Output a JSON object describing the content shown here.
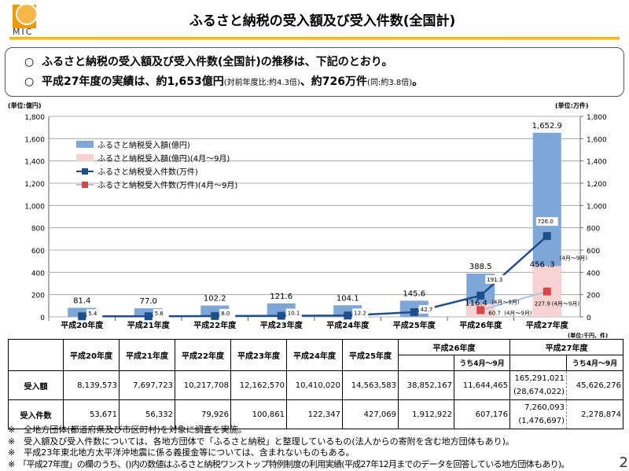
{
  "header": {
    "logo_text": "MIC",
    "title": "ふるさと納税の受入額及び受入件数(全国計)"
  },
  "summary": {
    "bullet": "○",
    "line1": "ふるさと納税の受入額及び受入件数(全国計)の推移は、下記のとおり。",
    "line2_a": "平成27年度の実績は、約1,653億円",
    "line2_b": "(対前年度比:約4.3倍)",
    "line2_c": "、約726万件",
    "line2_d": "(同:約3.8倍)",
    "line2_e": "。"
  },
  "chart_data": {
    "type": "bar+line",
    "left_unit": "(単位:億円)",
    "right_unit": "(単位:万件)",
    "table_unit": "(単位:千円、件)",
    "categories": [
      "平成20年度",
      "平成21年度",
      "平成22年度",
      "平成23年度",
      "平成24年度",
      "平成25年度",
      "平成26年度",
      "平成27年度"
    ],
    "ylim": [
      0,
      1800
    ],
    "yticks": [
      "0",
      "200",
      "400",
      "600",
      "800",
      "1,000",
      "1,200",
      "1,400",
      "1,600",
      "1,800"
    ],
    "y2ticks": [
      "0",
      "200",
      "400",
      "600",
      "800",
      "1,000",
      "1,200",
      "1,400",
      "1,600",
      "1,800"
    ],
    "series": [
      {
        "name": "ふるさと納税受入額(億円)",
        "kind": "bar",
        "color": "#7ea6d6",
        "values": [
          81.4,
          77.0,
          102.2,
          121.6,
          104.1,
          145.6,
          388.5,
          1652.9
        ],
        "labels": [
          "81.4",
          "77.0",
          "102.2",
          "121.6",
          "104.1",
          "145.6",
          "388.5",
          "1,652.9"
        ]
      },
      {
        "name": "ふるさと納税受入額(億円)(4月～9月)",
        "kind": "bar",
        "color": "#f6d2d2",
        "values": [
          null,
          null,
          null,
          null,
          null,
          null,
          116.4,
          456.3
        ],
        "labels": [
          "",
          "",
          "",
          "",
          "",
          "",
          "116.4",
          "456 .3"
        ],
        "label_suffix": "(4月～9月)"
      },
      {
        "name": "ふるさと納税受入件数(万件)",
        "kind": "line",
        "color": "#1f4e8c",
        "values": [
          5.4,
          5.6,
          8.0,
          10.1,
          12.2,
          42.7,
          191.3,
          726.0
        ],
        "labels": [
          "5.4",
          "5.6",
          "8.0",
          "10.1",
          "12.2",
          "42.7",
          "191.3",
          "726.0"
        ]
      },
      {
        "name": "ふるさと納税受入件数(万件)(4月～9月)",
        "kind": "line",
        "color": "#d9434a",
        "line_color": "#a9c4e6",
        "values": [
          null,
          null,
          null,
          null,
          null,
          null,
          60.7,
          227.9
        ],
        "labels": [
          "",
          "",
          "",
          "",
          "",
          "",
          "60.7",
          "227.9"
        ],
        "label_suffix": "(4月～9月)"
      }
    ]
  },
  "table": {
    "sub_label": "うち4月～9月",
    "years": [
      "平成20年度",
      "平成21年度",
      "平成22年度",
      "平成23年度",
      "平成24年度",
      "平成25年度",
      "平成26年度",
      "平成27年度"
    ],
    "rows": [
      {
        "label": "受入額",
        "values": [
          "8,139,573",
          "7,697,723",
          "10,217,708",
          "12,162,570",
          "10,410,020",
          "14,563,583",
          "38,852,167",
          "11,644,465",
          "165,291,021",
          "45,626,276"
        ],
        "paren": "(28,674,022)"
      },
      {
        "label": "受入件数",
        "values": [
          "53,671",
          "56,332",
          "79,926",
          "100,861",
          "122,347",
          "427,069",
          "1,912,922",
          "607,176",
          "7,260,093",
          "2,278,874"
        ],
        "paren": "(1,476,697)"
      }
    ]
  },
  "notes": [
    "※　全地方団体(都道府県及び市区町村)を対象に調査を実施。",
    "※　受入額及び受入件数については、各地方団体で「ふるさと納税」と整理しているもの(法人からの寄附を含む地方団体もあり)。",
    "※　平成23年東北地方太平洋沖地震に係る義援金等については、含まれないものもある。",
    "※　「平成27年度」の欄のうち、()内の数値はふるさと納税ワンストップ特例制度の利用実績(平成27年12月までのデータを回答している地方団体もあり)。"
  ],
  "page_number": "2"
}
